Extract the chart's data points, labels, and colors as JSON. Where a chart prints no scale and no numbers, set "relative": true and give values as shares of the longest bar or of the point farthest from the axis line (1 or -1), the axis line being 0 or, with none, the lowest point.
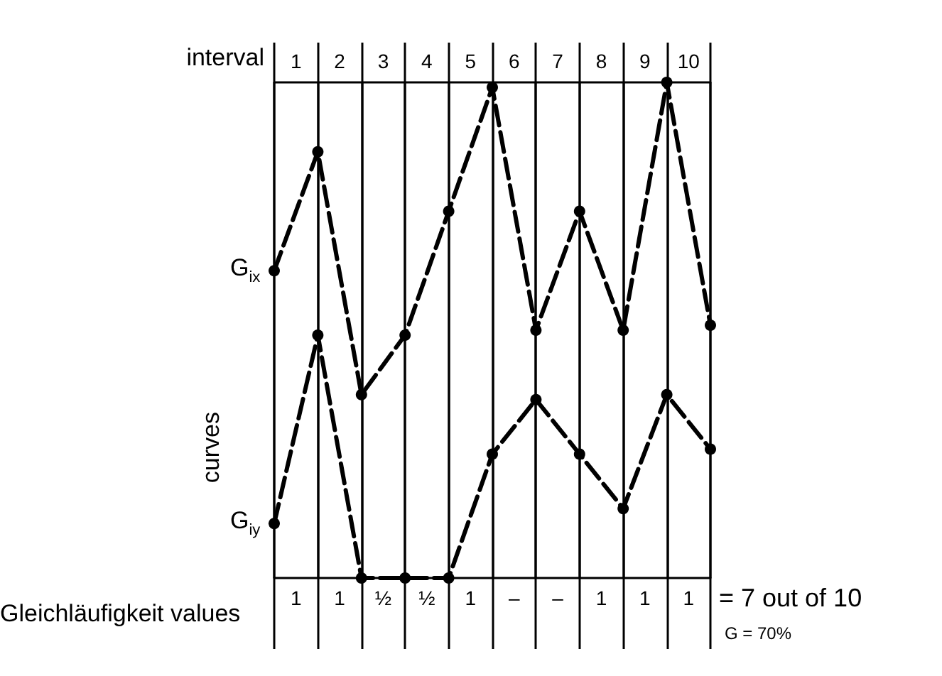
{
  "chart_data": {
    "type": "line",
    "relative": true,
    "xlabel": "Gleichläufigkeit values",
    "ylabel": "curves",
    "categories": [
      null,
      null,
      null,
      null,
      null,
      null,
      null,
      null,
      null,
      null,
      null
    ],
    "series": [
      {
        "name": "G$_{ix}$",
        "color": "#000000",
        "values": [
          0.62,
          0.86,
          0.37,
          0.49,
          0.74,
          0.99,
          0.5,
          0.74,
          0.5,
          1,
          0.51
        ]
      },
      {
        "name": "G$_{iy}$",
        "color": "#000000",
        "values": [
          0.11,
          0.49,
          0,
          0,
          0,
          0.25,
          0.36,
          0.25,
          0.14,
          0.37,
          0.26
        ]
      }
    ],
    "annotations": [
      "interval",
      "1",
      "2",
      "3",
      "4",
      "5",
      "6",
      "7",
      "8",
      "9",
      "10",
      "1",
      "1",
      "½",
      "½",
      "1",
      "–",
      "–",
      "1",
      "1",
      "1",
      "= 7 out of 10",
      "G = 70%"
    ],
    "marker": "circle",
    "line_style": "dashed",
    "grid": "x",
    "legend": false
  }
}
